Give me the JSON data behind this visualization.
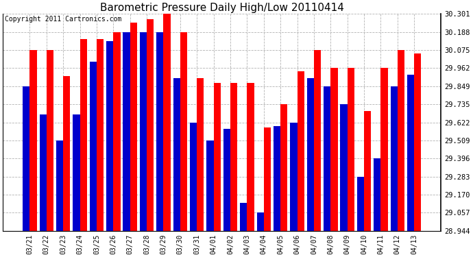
{
  "title": "Barometric Pressure Daily High/Low 20110414",
  "copyright": "Copyright 2011 Cartronics.com",
  "categories": [
    "03/21",
    "03/22",
    "03/23",
    "03/24",
    "03/25",
    "03/26",
    "03/27",
    "03/28",
    "03/29",
    "03/30",
    "03/31",
    "04/01",
    "04/02",
    "04/03",
    "04/04",
    "04/05",
    "04/06",
    "04/07",
    "04/08",
    "04/09",
    "04/10",
    "04/11",
    "04/12",
    "04/13"
  ],
  "highs": [
    30.075,
    30.075,
    29.91,
    30.145,
    30.145,
    30.188,
    30.245,
    30.27,
    30.301,
    30.188,
    29.9,
    29.87,
    29.87,
    29.87,
    29.59,
    29.735,
    29.94,
    30.075,
    29.962,
    29.962,
    29.695,
    29.962,
    30.075,
    30.055
  ],
  "lows": [
    29.849,
    29.67,
    29.51,
    29.67,
    30.0,
    30.13,
    30.188,
    30.188,
    30.188,
    29.9,
    29.622,
    29.51,
    29.58,
    29.12,
    29.057,
    29.6,
    29.622,
    29.9,
    29.849,
    29.735,
    29.283,
    29.396,
    29.849,
    29.92
  ],
  "ylim_min": 28.944,
  "ylim_max": 30.301,
  "yticks": [
    28.944,
    29.057,
    29.17,
    29.283,
    29.396,
    29.509,
    29.622,
    29.735,
    29.849,
    29.962,
    30.075,
    30.188,
    30.301
  ],
  "bar_color_high": "#ff0000",
  "bar_color_low": "#0000cc",
  "bg_color": "#ffffff",
  "grid_color": "#aaaaaa",
  "title_fontsize": 11,
  "copyright_fontsize": 7,
  "bar_width": 0.42
}
